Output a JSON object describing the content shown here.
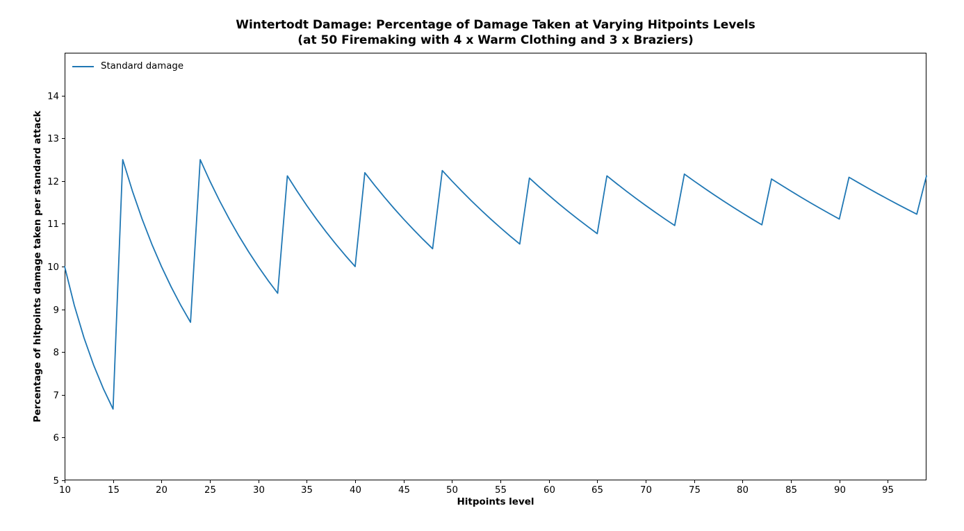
{
  "chart_data": {
    "type": "line",
    "title_lines": [
      "Wintertodt Damage: Percentage of Damage Taken at Varying Hitpoints Levels",
      "(at 50 Firemaking with 4 x Warm Clothing and 3 x Braziers)"
    ],
    "title": "Wintertodt Damage: Percentage of Damage Taken at Varying Hitpoints Levels (at 50 Firemaking with 4 x Warm Clothing and 3 x Braziers)",
    "xlabel": "Hitpoints level",
    "ylabel": "Percentage of hitpoints damage taken per standard attack",
    "xlim": [
      10,
      99
    ],
    "ylim": [
      5,
      15
    ],
    "x_ticks": [
      10,
      15,
      20,
      25,
      30,
      35,
      40,
      45,
      50,
      55,
      60,
      65,
      70,
      75,
      80,
      85,
      90,
      95
    ],
    "y_ticks": [
      5,
      6,
      7,
      8,
      9,
      10,
      11,
      12,
      13,
      14
    ],
    "grid": false,
    "legend": {
      "position": "upper left",
      "frame": false,
      "entries": [
        {
          "label": "Standard damage",
          "color": "#1f77b4"
        }
      ]
    },
    "series": [
      {
        "name": "Standard damage",
        "color": "#1f77b4",
        "x": [
          10,
          11,
          12,
          13,
          14,
          15,
          16,
          17,
          18,
          19,
          20,
          21,
          22,
          23,
          24,
          25,
          26,
          27,
          28,
          29,
          30,
          31,
          32,
          33,
          34,
          35,
          36,
          37,
          38,
          39,
          40,
          41,
          42,
          43,
          44,
          45,
          46,
          47,
          48,
          49,
          50,
          51,
          52,
          53,
          54,
          55,
          56,
          57,
          58,
          59,
          60,
          61,
          62,
          63,
          64,
          65,
          66,
          67,
          68,
          69,
          70,
          71,
          72,
          73,
          74,
          75,
          76,
          77,
          78,
          79,
          80,
          81,
          82,
          83,
          84,
          85,
          86,
          87,
          88,
          89,
          90,
          91,
          92,
          93,
          94,
          95,
          96,
          97,
          98,
          99
        ],
        "y": [
          10.0,
          9.091,
          8.333,
          7.692,
          7.143,
          6.667,
          12.5,
          11.765,
          11.111,
          10.526,
          10.0,
          9.524,
          9.091,
          8.696,
          12.5,
          12.0,
          11.538,
          11.111,
          10.714,
          10.345,
          10.0,
          9.677,
          9.375,
          12.121,
          11.765,
          11.429,
          11.111,
          10.811,
          10.526,
          10.256,
          10.0,
          12.195,
          11.905,
          11.628,
          11.364,
          11.111,
          10.87,
          10.638,
          10.417,
          12.245,
          12.0,
          11.765,
          11.538,
          11.321,
          11.111,
          10.909,
          10.714,
          10.526,
          12.069,
          11.864,
          11.667,
          11.475,
          11.29,
          11.111,
          10.938,
          10.769,
          12.121,
          11.94,
          11.765,
          11.594,
          11.429,
          11.268,
          11.111,
          10.959,
          12.162,
          12.0,
          11.842,
          11.688,
          11.538,
          11.392,
          11.25,
          11.111,
          10.976,
          12.048,
          11.905,
          11.765,
          11.628,
          11.494,
          11.364,
          11.236,
          11.111,
          12.088,
          11.957,
          11.828,
          11.702,
          11.579,
          11.458,
          11.34,
          11.224,
          12.121
        ]
      }
    ]
  },
  "colors": {
    "line": "#1f77b4",
    "axes": "#000000",
    "text": "#000000",
    "background": "#ffffff"
  }
}
